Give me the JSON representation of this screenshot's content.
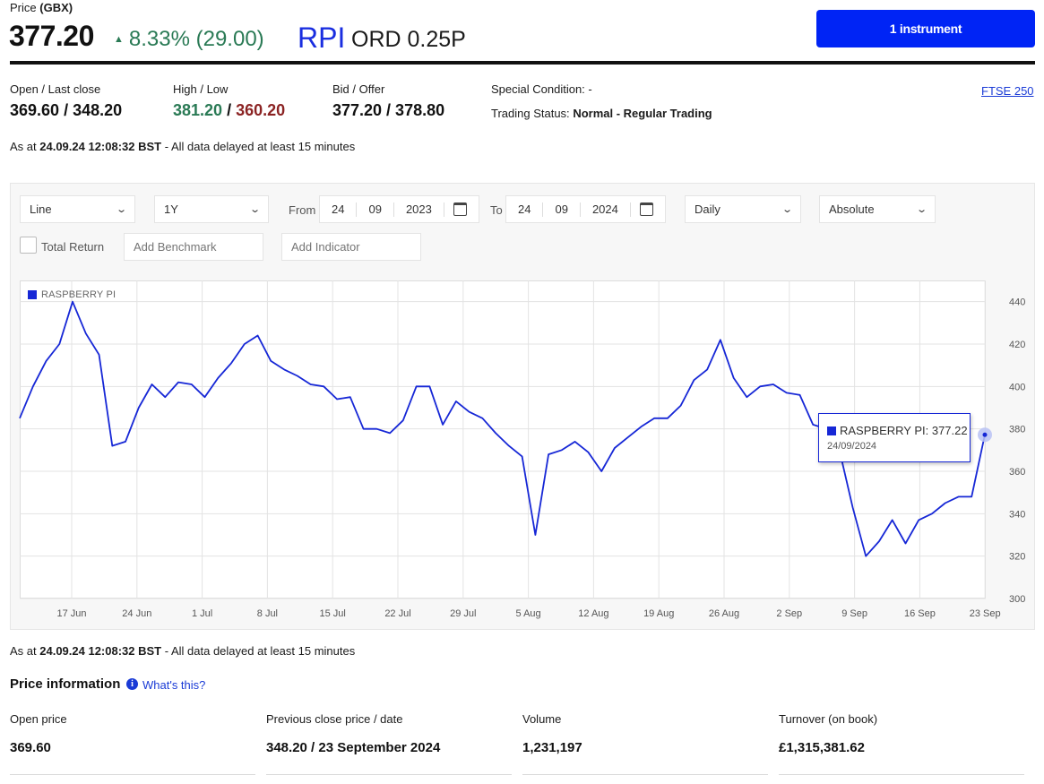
{
  "header": {
    "price_label_prefix": "Price",
    "price_label_unit": "(GBX)",
    "price": "377.20",
    "change_arrow": "▲",
    "change": "8.33% (29.00)",
    "ticker": "RPI",
    "ticker_desc": "ORD 0.25P",
    "instrument_button": "1 instrument",
    "accent_color": "#0024f5",
    "up_color": "#2a7a55",
    "down_color": "#8b2323"
  },
  "stats": {
    "open_last_label": "Open / Last close",
    "open_value": "369.60",
    "last_close_value": "348.20",
    "high_low_label": "High / Low",
    "high_value": "381.20",
    "low_value": "360.20",
    "bid_offer_label": "Bid / Offer",
    "bid_offer_value": "377.20 / 378.80",
    "special_condition_label": "Special Condition:",
    "special_condition_value": "-",
    "trading_status_label": "Trading Status:",
    "trading_status_value": "Normal - Regular Trading",
    "index_link": "FTSE 250",
    "slash": "/"
  },
  "as_at": {
    "prefix": "As at",
    "timestamp": "24.09.24 12:08:32 BST",
    "suffix": "- All data delayed at least 15 minutes"
  },
  "controls": {
    "chart_type": "Line",
    "period": "1Y",
    "from_label": "From",
    "from_day": "24",
    "from_month": "09",
    "from_year": "2023",
    "to_label": "To",
    "to_day": "24",
    "to_month": "09",
    "to_year": "2024",
    "interval": "Daily",
    "mode": "Absolute",
    "total_return_label": "Total Return",
    "benchmark_placeholder": "Add Benchmark",
    "indicator_placeholder": "Add Indicator",
    "chevron_icon": "chevron-down-icon",
    "calendar_icon": "calendar-icon"
  },
  "chart_data": {
    "type": "line",
    "series": [
      {
        "name": "RASPBERRY PI",
        "color": "#1627d6",
        "values": [
          385,
          400,
          412,
          420,
          440,
          425,
          415,
          372,
          374,
          390,
          401,
          395,
          402,
          401,
          395,
          404,
          411,
          420,
          424,
          412,
          408,
          405,
          401,
          400,
          394,
          395,
          380,
          380,
          378,
          384,
          400,
          400,
          382,
          393,
          388,
          385,
          378,
          372,
          367,
          330,
          368,
          370,
          374,
          369,
          360,
          371,
          376,
          381,
          385,
          385,
          391,
          403,
          408,
          422,
          404,
          395,
          400,
          401,
          397,
          396,
          382,
          380,
          370,
          343,
          320,
          327,
          337,
          326,
          337,
          340,
          345,
          348,
          348,
          377.22
        ]
      }
    ],
    "x_tick_labels": [
      "17 Jun",
      "24 Jun",
      "1 Jul",
      "8 Jul",
      "15 Jul",
      "22 Jul",
      "29 Jul",
      "5 Aug",
      "12 Aug",
      "19 Aug",
      "26 Aug",
      "2 Sep",
      "9 Sep",
      "16 Sep",
      "23 Sep"
    ],
    "y_ticks": [
      300,
      320,
      340,
      360,
      380,
      400,
      420,
      440
    ],
    "ylim": [
      300,
      450
    ],
    "grid": true,
    "legend": "top-left",
    "legend_label": "RASPBERRY PI",
    "tooltip": {
      "label": "RASPBERRY PI: 377.22",
      "date": "24/09/2024"
    }
  },
  "price_info": {
    "title": "Price information",
    "whats_this": "What's this?",
    "info_icon": "info-icon",
    "items": [
      {
        "label": "Open price",
        "value": "369.60"
      },
      {
        "label": "Previous close price / date",
        "value": "348.20 / 23 September 2024"
      },
      {
        "label": "Volume",
        "value": "1,231,197"
      },
      {
        "label": "Turnover (on book)",
        "value": "£1,315,381.62"
      }
    ]
  }
}
